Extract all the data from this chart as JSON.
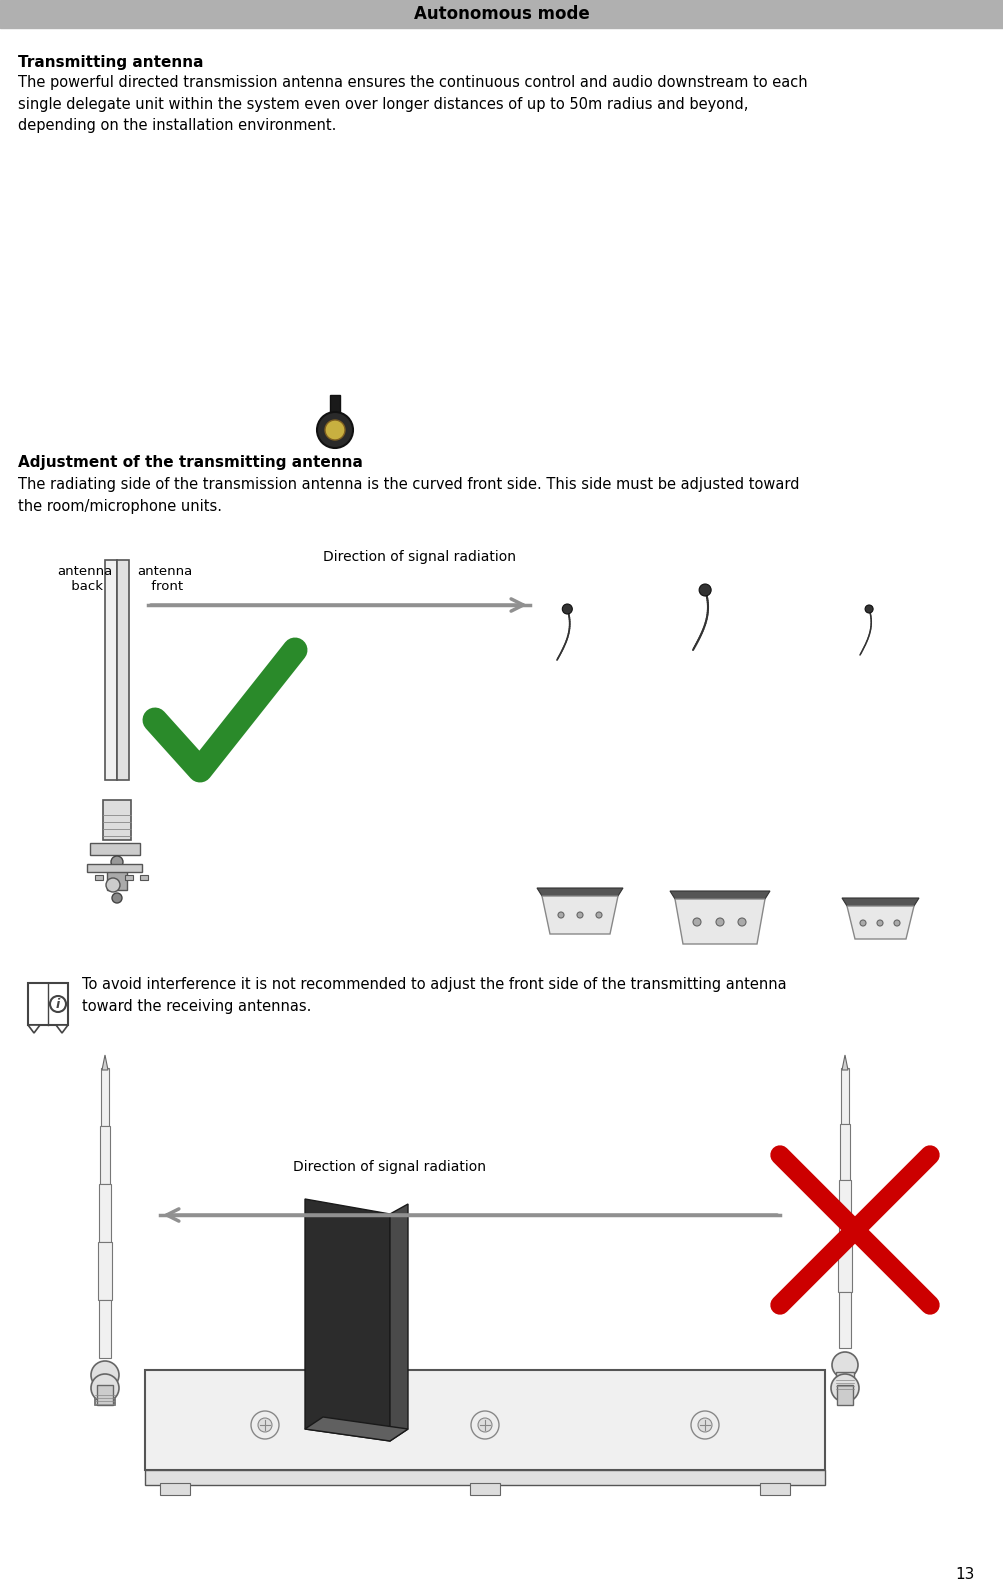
{
  "header_text": "Autonomous mode",
  "header_bg": "#b0b0b0",
  "header_fontsize": 12,
  "page_number": "13",
  "title1": "Transmitting antenna",
  "body1": "The powerful directed transmission antenna ensures the continuous control and audio downstream to each\nsingle delegate unit within the system even over longer distances of up to 50m radius and beyond,\ndepending on the installation environment.",
  "title2": "Adjustment of the transmitting antenna",
  "body2": "The radiating side of the transmission antenna is the curved front side. This side must be adjusted toward\nthe room/microphone units.",
  "note_text": "To avoid interference it is not recommended to adjust the front side of the transmitting antenna\ntoward the receiving antennas.",
  "label_antenna_back": "antenna\n back",
  "label_antenna_front": "antenna\n front",
  "label_direction1": "Direction of signal radiation",
  "label_direction2": "Direction of signal radiation",
  "bg_color": "#ffffff",
  "text_color": "#000000",
  "body_fontsize": 10.5,
  "title_fontsize": 11,
  "arrow_color": "#909090",
  "check_color": "#2a8a2a",
  "x_color": "#cc0000"
}
